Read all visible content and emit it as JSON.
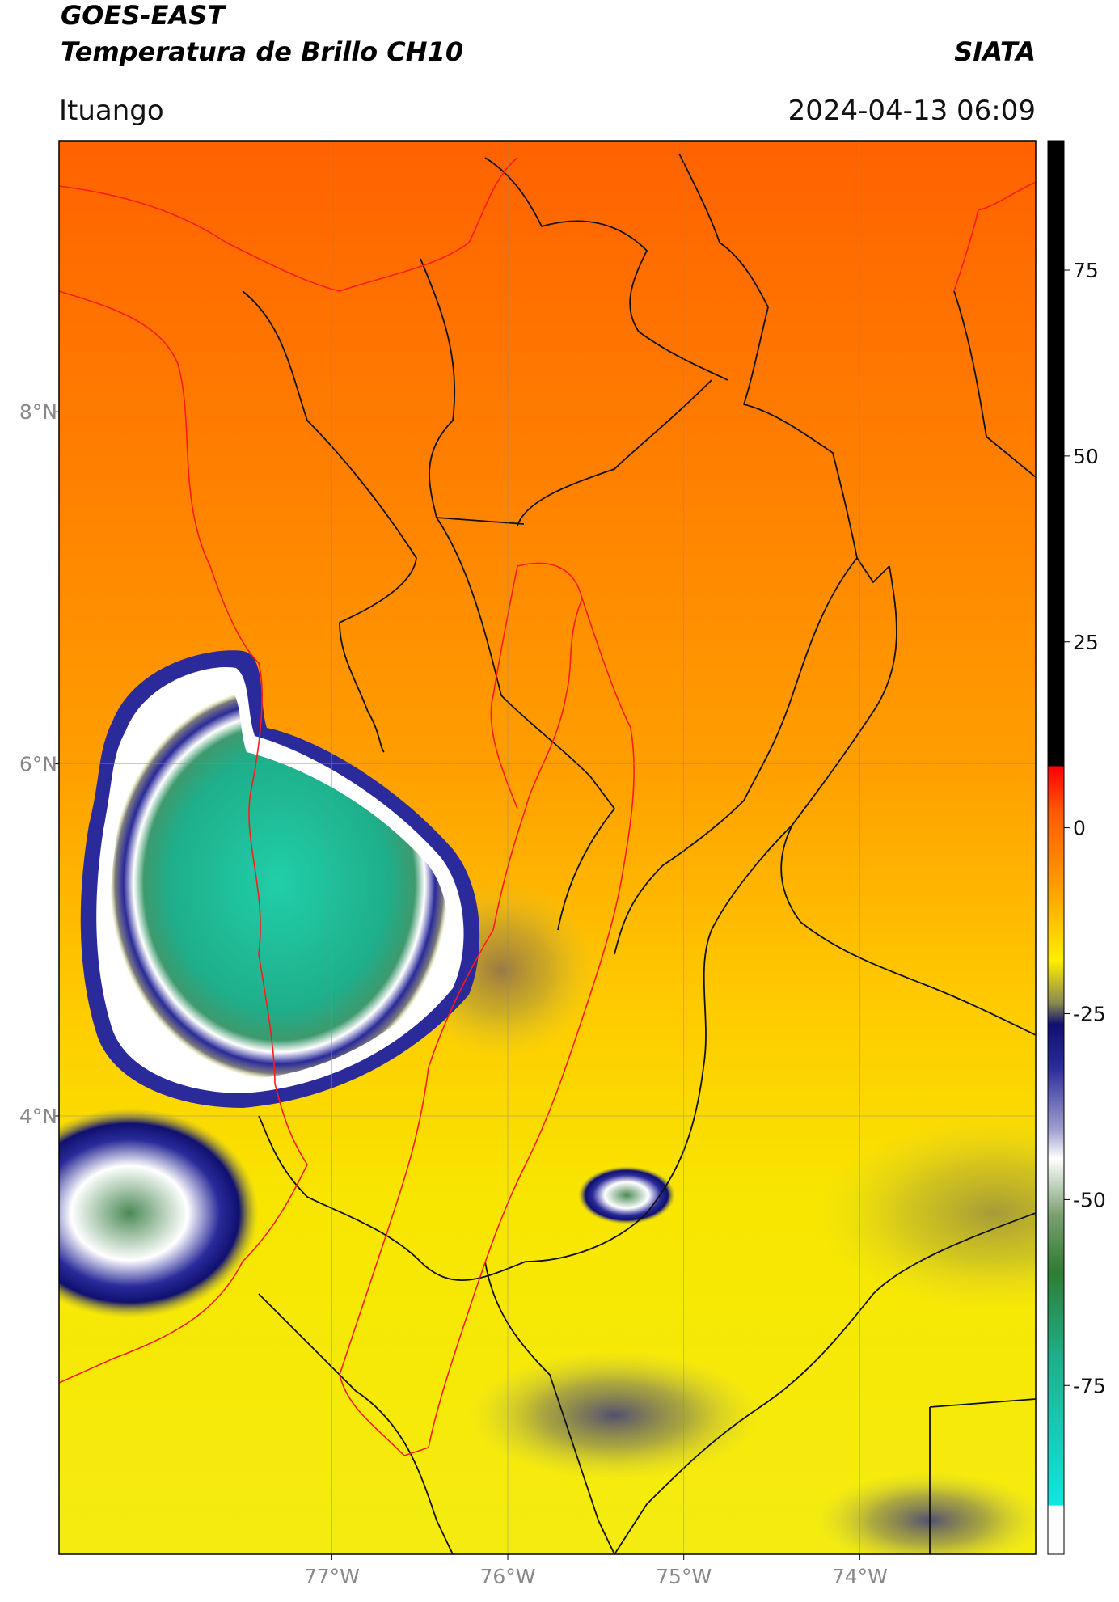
{
  "header": {
    "title_line1": "GOES-EAST",
    "title_line2": "Temperatura de Brillo CH10",
    "source": "SIATA",
    "location": "Ituango",
    "datetime": "2024-04-13 06:09"
  },
  "map": {
    "xlim": [
      -78.55,
      -73.0
    ],
    "ylim": [
      1.51,
      9.54
    ],
    "xticks": [
      {
        "value": -77,
        "label": "77°W"
      },
      {
        "value": -76,
        "label": "76°W"
      },
      {
        "value": -75,
        "label": "75°W"
      },
      {
        "value": -74,
        "label": "74°W"
      }
    ],
    "yticks": [
      {
        "value": 8,
        "label": "8°N"
      },
      {
        "value": 6,
        "label": "6°N"
      },
      {
        "value": 4,
        "label": "4°N"
      }
    ]
  },
  "colorbar": {
    "lim": [
      -97.7,
      92.4
    ],
    "ticks": [
      75,
      50,
      25,
      0,
      -25,
      -50,
      -75
    ]
  }
}
